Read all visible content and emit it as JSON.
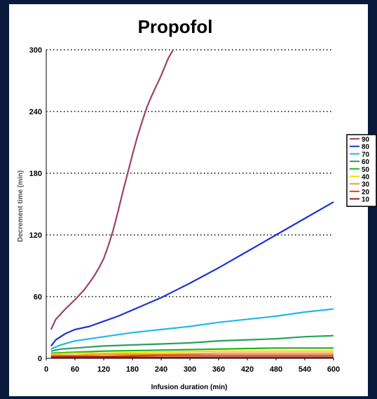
{
  "chart_data": {
    "type": "line",
    "title": "Propofol",
    "xlabel": "Infusion duration (min)",
    "ylabel": "Decrement time (min)",
    "xlim": [
      0,
      600
    ],
    "ylim": [
      0,
      300
    ],
    "x_ticks": [
      "0",
      "60",
      "120",
      "180",
      "240",
      "300",
      "360",
      "420",
      "480",
      "540",
      "600"
    ],
    "y_ticks": [
      "0",
      "60",
      "120",
      "180",
      "240",
      "300"
    ],
    "grid": "horizontal dotted",
    "legend_position": "right",
    "series": [
      {
        "name": "90",
        "color": "#a0406a",
        "x": [
          10,
          20,
          40,
          60,
          80,
          100,
          110,
          120,
          130,
          140,
          150,
          160,
          170,
          180,
          190,
          200,
          210,
          220,
          240,
          255,
          265
        ],
        "y": [
          28,
          38,
          48,
          57,
          67,
          80,
          88,
          97,
          110,
          125,
          143,
          162,
          180,
          198,
          215,
          230,
          244,
          255,
          275,
          292,
          300
        ]
      },
      {
        "name": "80",
        "color": "#1c32d8",
        "x": [
          10,
          20,
          40,
          60,
          90,
          120,
          150,
          180,
          210,
          240,
          270,
          300,
          360,
          420,
          480,
          540,
          600
        ],
        "y": [
          12,
          18,
          24,
          28,
          31,
          36,
          41,
          47,
          53,
          59,
          66,
          73,
          88,
          104,
          120,
          136,
          152
        ]
      },
      {
        "name": "70",
        "color": "#22b8e8",
        "x": [
          10,
          30,
          60,
          120,
          180,
          240,
          300,
          360,
          420,
          480,
          540,
          600
        ],
        "y": [
          9,
          13,
          17,
          21,
          25,
          28,
          31,
          35,
          38,
          41,
          45,
          48
        ]
      },
      {
        "name": "60",
        "color": "#2e9e5e",
        "x": [
          10,
          30,
          60,
          120,
          180,
          240,
          300,
          360,
          420,
          480,
          540,
          600
        ],
        "y": [
          7,
          9,
          10,
          12,
          13,
          14,
          15,
          17,
          18,
          19,
          21,
          22
        ]
      },
      {
        "name": "50",
        "color": "#20b020",
        "x": [
          10,
          60,
          120,
          240,
          360,
          480,
          600
        ],
        "y": [
          5,
          6,
          7,
          8,
          9,
          10,
          10
        ]
      },
      {
        "name": "40",
        "color": "#e8e000",
        "x": [
          10,
          60,
          120,
          240,
          360,
          480,
          600
        ],
        "y": [
          4,
          5,
          5,
          6,
          7,
          7,
          7
        ]
      },
      {
        "name": "30",
        "color": "#f0a020",
        "x": [
          10,
          60,
          120,
          240,
          360,
          480,
          600
        ],
        "y": [
          3,
          3,
          4,
          4,
          5,
          5,
          5
        ]
      },
      {
        "name": "20",
        "color": "#e84010",
        "x": [
          10,
          60,
          120,
          240,
          360,
          480,
          600
        ],
        "y": [
          2,
          2,
          2,
          3,
          3,
          3,
          3
        ]
      },
      {
        "name": "10",
        "color": "#a01818",
        "x": [
          10,
          60,
          120,
          240,
          360,
          480,
          600
        ],
        "y": [
          1,
          1,
          1,
          1,
          1,
          1,
          1
        ]
      }
    ]
  }
}
